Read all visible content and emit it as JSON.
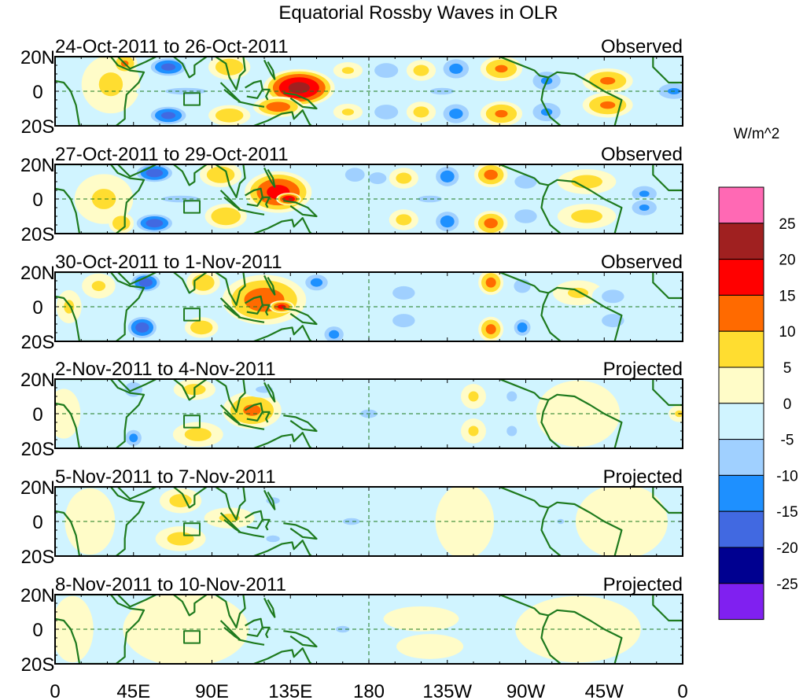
{
  "chart_data": {
    "type": "heatmap",
    "title": "Equatorial Rossby Waves in OLR",
    "units_label": "W/m^2",
    "x_axis": {
      "range": [
        0,
        360
      ],
      "ticks": [
        0,
        45,
        90,
        135,
        180,
        225,
        270,
        315,
        360
      ],
      "tick_labels": [
        "0",
        "45E",
        "90E",
        "135E",
        "180",
        "135W",
        "90W",
        "45W",
        "0"
      ]
    },
    "y_axis": {
      "range": [
        -20,
        20
      ],
      "ticks": [
        20,
        0,
        -20
      ],
      "tick_labels": [
        "20N",
        "0",
        "20S"
      ]
    },
    "colorbar": {
      "levels": [
        -25,
        -20,
        -15,
        -10,
        -5,
        0,
        5,
        10,
        15,
        20,
        25
      ],
      "level_labels": [
        "-25",
        "-20",
        "-15",
        "-10",
        "-5",
        "0",
        "5",
        "10",
        "15",
        "20",
        "25"
      ],
      "colors_low_to_high": [
        "#8020f0",
        "#000090",
        "#4169e1",
        "#1e90ff",
        "#a0d0ff",
        "#d0f4ff",
        "#fffcc8",
        "#ffdd30",
        "#ff6a00",
        "#ff0000",
        "#a02020",
        "#ff69b4"
      ]
    },
    "coastline_color": "#1e7a1e",
    "panels": [
      {
        "date_range": "24-Oct-2011 to 26-Oct-2011",
        "status": "Observed",
        "anomalies": [
          {
            "lon": 32,
            "lat": 4,
            "value": 6,
            "sx": 14,
            "sy": 14
          },
          {
            "lon": 40,
            "lat": 16,
            "value": 11,
            "sx": 6,
            "sy": 5
          },
          {
            "lon": 65,
            "lat": 14,
            "value": -17,
            "sx": 10,
            "sy": 5
          },
          {
            "lon": 65,
            "lat": -14,
            "value": -17,
            "sx": 10,
            "sy": 5
          },
          {
            "lon": 75,
            "lat": 0,
            "value": -6,
            "sx": 24,
            "sy": 4
          },
          {
            "lon": 100,
            "lat": 14,
            "value": 9,
            "sx": 10,
            "sy": 6
          },
          {
            "lon": 100,
            "lat": -14,
            "value": 9,
            "sx": 10,
            "sy": 5
          },
          {
            "lon": 140,
            "lat": 2,
            "value": 22,
            "sx": 17,
            "sy": 9
          },
          {
            "lon": 128,
            "lat": -9,
            "value": 13,
            "sx": 12,
            "sy": 5
          },
          {
            "lon": 168,
            "lat": 12,
            "value": 6,
            "sx": 7,
            "sy": 4
          },
          {
            "lon": 168,
            "lat": -12,
            "value": 6,
            "sx": 7,
            "sy": 4
          },
          {
            "lon": 190,
            "lat": 12,
            "value": -10,
            "sx": 8,
            "sy": 5
          },
          {
            "lon": 190,
            "lat": -12,
            "value": -10,
            "sx": 8,
            "sy": 5
          },
          {
            "lon": 210,
            "lat": 12,
            "value": 7,
            "sx": 7,
            "sy": 5
          },
          {
            "lon": 210,
            "lat": -12,
            "value": 7,
            "sx": 7,
            "sy": 5
          },
          {
            "lon": 230,
            "lat": 13,
            "value": -12,
            "sx": 8,
            "sy": 6
          },
          {
            "lon": 230,
            "lat": -13,
            "value": -12,
            "sx": 8,
            "sy": 6
          },
          {
            "lon": 222,
            "lat": 0,
            "value": -6,
            "sx": 14,
            "sy": 4
          },
          {
            "lon": 256,
            "lat": 13,
            "value": 11,
            "sx": 10,
            "sy": 6
          },
          {
            "lon": 256,
            "lat": -13,
            "value": 11,
            "sx": 10,
            "sy": 6
          },
          {
            "lon": 282,
            "lat": 6,
            "value": -11,
            "sx": 9,
            "sy": 6
          },
          {
            "lon": 282,
            "lat": -12,
            "value": -11,
            "sx": 9,
            "sy": 6
          },
          {
            "lon": 317,
            "lat": 6,
            "value": 11,
            "sx": 12,
            "sy": 6
          },
          {
            "lon": 317,
            "lat": -8,
            "value": 11,
            "sx": 12,
            "sy": 6
          },
          {
            "lon": 355,
            "lat": 0,
            "value": -11,
            "sx": 10,
            "sy": 5
          }
        ]
      },
      {
        "date_range": "27-Oct-2011 to 29-Oct-2011",
        "status": "Observed",
        "anomalies": [
          {
            "lon": 28,
            "lat": 0,
            "value": 6,
            "sx": 14,
            "sy": 12
          },
          {
            "lon": 38,
            "lat": -14,
            "value": 10,
            "sx": 6,
            "sy": 5
          },
          {
            "lon": 57,
            "lat": 15,
            "value": -18,
            "sx": 10,
            "sy": 5
          },
          {
            "lon": 57,
            "lat": -14,
            "value": -18,
            "sx": 10,
            "sy": 5
          },
          {
            "lon": 72,
            "lat": 0,
            "value": -6,
            "sx": 22,
            "sy": 4
          },
          {
            "lon": 95,
            "lat": 14,
            "value": 9,
            "sx": 10,
            "sy": 6
          },
          {
            "lon": 98,
            "lat": -10,
            "value": 10,
            "sx": 10,
            "sy": 6
          },
          {
            "lon": 128,
            "lat": 4,
            "value": 17,
            "sx": 16,
            "sy": 10
          },
          {
            "lon": 134,
            "lat": 0,
            "value": 20,
            "sx": 6,
            "sy": 3
          },
          {
            "lon": 172,
            "lat": 14,
            "value": -9,
            "sx": 7,
            "sy": 5
          },
          {
            "lon": 185,
            "lat": 12,
            "value": -10,
            "sx": 6,
            "sy": 4
          },
          {
            "lon": 200,
            "lat": 12,
            "value": 7,
            "sx": 7,
            "sy": 5
          },
          {
            "lon": 200,
            "lat": -12,
            "value": 7,
            "sx": 7,
            "sy": 5
          },
          {
            "lon": 215,
            "lat": 0,
            "value": -6,
            "sx": 14,
            "sy": 4
          },
          {
            "lon": 225,
            "lat": 13,
            "value": -13,
            "sx": 7,
            "sy": 6
          },
          {
            "lon": 225,
            "lat": -13,
            "value": -13,
            "sx": 7,
            "sy": 6
          },
          {
            "lon": 250,
            "lat": 14,
            "value": 12,
            "sx": 8,
            "sy": 6
          },
          {
            "lon": 250,
            "lat": -14,
            "value": 12,
            "sx": 8,
            "sy": 6
          },
          {
            "lon": 270,
            "lat": 10,
            "value": -9,
            "sx": 8,
            "sy": 5
          },
          {
            "lon": 270,
            "lat": -10,
            "value": -9,
            "sx": 8,
            "sy": 5
          },
          {
            "lon": 305,
            "lat": 10,
            "value": 7,
            "sx": 14,
            "sy": 6
          },
          {
            "lon": 305,
            "lat": -10,
            "value": 7,
            "sx": 14,
            "sy": 6
          },
          {
            "lon": 338,
            "lat": 3,
            "value": -11,
            "sx": 8,
            "sy": 5
          },
          {
            "lon": 338,
            "lat": -5,
            "value": -11,
            "sx": 8,
            "sy": 5
          }
        ]
      },
      {
        "date_range": "30-Oct-2011 to 1-Nov-2011",
        "status": "Observed",
        "anomalies": [
          {
            "lon": 8,
            "lat": 0,
            "value": 6,
            "sx": 6,
            "sy": 8
          },
          {
            "lon": 25,
            "lat": 12,
            "value": 6,
            "sx": 8,
            "sy": 6
          },
          {
            "lon": 52,
            "lat": 14,
            "value": -18,
            "sx": 8,
            "sy": 5
          },
          {
            "lon": 50,
            "lat": -12,
            "value": -18,
            "sx": 8,
            "sy": 6
          },
          {
            "lon": 85,
            "lat": 14,
            "value": 9,
            "sx": 8,
            "sy": 6
          },
          {
            "lon": 84,
            "lat": -12,
            "value": 9,
            "sx": 8,
            "sy": 5
          },
          {
            "lon": 120,
            "lat": 4,
            "value": 13,
            "sx": 20,
            "sy": 12
          },
          {
            "lon": 130,
            "lat": 0,
            "value": 17,
            "sx": 6,
            "sy": 3
          },
          {
            "lon": 150,
            "lat": 14,
            "value": -12,
            "sx": 7,
            "sy": 5
          },
          {
            "lon": 160,
            "lat": -16,
            "value": -12,
            "sx": 6,
            "sy": 5
          },
          {
            "lon": 200,
            "lat": 8,
            "value": -7,
            "sx": 10,
            "sy": 6
          },
          {
            "lon": 200,
            "lat": -8,
            "value": -7,
            "sx": 10,
            "sy": 6
          },
          {
            "lon": 250,
            "lat": 14,
            "value": 12,
            "sx": 6,
            "sy": 6
          },
          {
            "lon": 250,
            "lat": -13,
            "value": 12,
            "sx": 6,
            "sy": 6
          },
          {
            "lon": 268,
            "lat": -12,
            "value": -13,
            "sx": 5,
            "sy": 5
          },
          {
            "lon": 268,
            "lat": 12,
            "value": -9,
            "sx": 6,
            "sy": 5
          },
          {
            "lon": 300,
            "lat": 8,
            "value": 6,
            "sx": 12,
            "sy": 6
          },
          {
            "lon": 320,
            "lat": 6,
            "value": -7,
            "sx": 10,
            "sy": 6
          },
          {
            "lon": 320,
            "lat": -8,
            "value": -7,
            "sx": 10,
            "sy": 6
          }
        ]
      },
      {
        "date_range": "2-Nov-2011 to 4-Nov-2011",
        "status": "Projected",
        "anomalies": [
          {
            "lon": 5,
            "lat": 0,
            "value": 5,
            "sx": 8,
            "sy": 12
          },
          {
            "lon": 45,
            "lat": 14,
            "value": -10,
            "sx": 6,
            "sy": 5
          },
          {
            "lon": 45,
            "lat": -14,
            "value": -12,
            "sx": 5,
            "sy": 5
          },
          {
            "lon": 80,
            "lat": 14,
            "value": 7,
            "sx": 10,
            "sy": 5
          },
          {
            "lon": 82,
            "lat": -12,
            "value": 7,
            "sx": 12,
            "sy": 6
          },
          {
            "lon": 113,
            "lat": 2,
            "value": 11,
            "sx": 14,
            "sy": 9
          },
          {
            "lon": 180,
            "lat": 0,
            "value": -6,
            "sx": 10,
            "sy": 5
          },
          {
            "lon": 120,
            "lat": 14,
            "value": -6,
            "sx": 10,
            "sy": 4
          },
          {
            "lon": 240,
            "lat": 10,
            "value": 6,
            "sx": 6,
            "sy": 6
          },
          {
            "lon": 240,
            "lat": -10,
            "value": 6,
            "sx": 6,
            "sy": 6
          },
          {
            "lon": 262,
            "lat": 10,
            "value": -6,
            "sx": 6,
            "sy": 6
          },
          {
            "lon": 262,
            "lat": -10,
            "value": -6,
            "sx": 6,
            "sy": 6
          },
          {
            "lon": 300,
            "lat": 0,
            "value": 3,
            "sx": 20,
            "sy": 16
          },
          {
            "lon": 358,
            "lat": 0,
            "value": 6,
            "sx": 5,
            "sy": 4
          }
        ]
      },
      {
        "date_range": "5-Nov-2011 to 7-Nov-2011",
        "status": "Projected",
        "anomalies": [
          {
            "lon": 72,
            "lat": 12,
            "value": 7,
            "sx": 10,
            "sy": 6
          },
          {
            "lon": 72,
            "lat": -10,
            "value": 7,
            "sx": 12,
            "sy": 6
          },
          {
            "lon": 100,
            "lat": 2,
            "value": 6,
            "sx": 12,
            "sy": 5
          },
          {
            "lon": 20,
            "lat": 0,
            "value": 3,
            "sx": 12,
            "sy": 16
          },
          {
            "lon": 125,
            "lat": 12,
            "value": -6,
            "sx": 8,
            "sy": 4
          },
          {
            "lon": 125,
            "lat": -10,
            "value": -6,
            "sx": 8,
            "sy": 4
          },
          {
            "lon": 170,
            "lat": 0,
            "value": -6,
            "sx": 10,
            "sy": 4
          },
          {
            "lon": 235,
            "lat": 0,
            "value": 3,
            "sx": 14,
            "sy": 18
          },
          {
            "lon": 290,
            "lat": 0,
            "value": -6,
            "sx": 4,
            "sy": 3
          },
          {
            "lon": 325,
            "lat": 0,
            "value": 3,
            "sx": 22,
            "sy": 18
          }
        ]
      },
      {
        "date_range": "8-Nov-2011 to 10-Nov-2011",
        "status": "Projected",
        "anomalies": [
          {
            "lon": 80,
            "lat": 0,
            "value": 6,
            "sx": 16,
            "sy": 3
          },
          {
            "lon": 75,
            "lat": 0,
            "value": 3,
            "sx": 30,
            "sy": 18
          },
          {
            "lon": 165,
            "lat": 0,
            "value": -6,
            "sx": 8,
            "sy": 4
          },
          {
            "lon": 210,
            "lat": 6,
            "value": 3,
            "sx": 18,
            "sy": 6
          },
          {
            "lon": 215,
            "lat": -10,
            "value": 3,
            "sx": 16,
            "sy": 6
          },
          {
            "lon": 300,
            "lat": 0,
            "value": 3,
            "sx": 30,
            "sy": 16
          },
          {
            "lon": 10,
            "lat": 0,
            "value": 3,
            "sx": 10,
            "sy": 16
          }
        ]
      }
    ]
  }
}
